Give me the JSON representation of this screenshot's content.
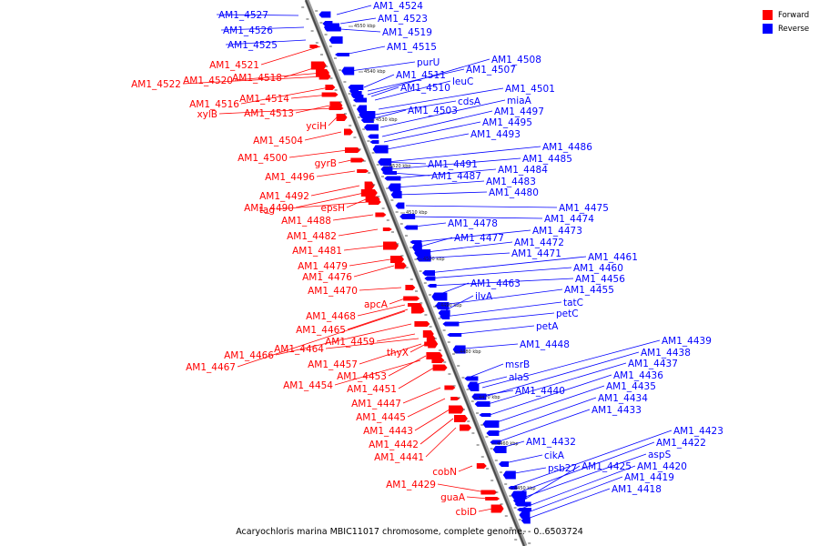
{
  "legend": {
    "forward_label": "Forward",
    "reverse_label": "Reverse",
    "forward_color": "#ff0000",
    "reverse_color": "#0000ff"
  },
  "caption": "Acaryochloris marina MBIC11017 chromosome, complete genome. - 0..6503724",
  "scale_unit": "kbp",
  "scale_ticks": [
    "4550 kbp",
    "4540 kbp",
    "4530 kbp",
    "4520 kbp",
    "4510 kbp",
    "4500 kbp",
    "4490 kbp",
    "4480 kbp",
    "4470 kbp",
    "4460 kbp",
    "4450 kbp"
  ],
  "forward_genes": [
    "AM1_4521",
    "AM1_4518",
    "AM1_4520",
    "AM1_4522",
    "AM1_4516",
    "AM1_4514",
    "xylB",
    "AM1_4513",
    "yciH",
    "AM1_4504",
    "AM1_4500",
    "gyrB",
    "AM1_4496",
    "AM1_4492",
    "AM1_4490",
    "epsH",
    "tag",
    "AM1_4488",
    "AM1_4482",
    "AM1_4481",
    "AM1_4479",
    "AM1_4476",
    "AM1_4470",
    "apcA",
    "AM1_4468",
    "AM1_4465",
    "AM1_4459",
    "AM1_4464",
    "AM1_4466",
    "thyX",
    "AM1_4467",
    "AM1_4457",
    "AM1_4453",
    "AM1_4451",
    "AM1_4454",
    "AM1_4447",
    "AM1_4445",
    "AM1_4443",
    "AM1_4442",
    "AM1_4441",
    "cobN",
    "AM1_4429",
    "guaA",
    "cbiD"
  ],
  "reverse_genes": [
    "AM1_4527",
    "AM1_4526",
    "AM1_4525",
    "AM1_4524",
    "AM1_4523",
    "AM1_4519",
    "AM1_4515",
    "purU",
    "AM1_4508",
    "AM1_4507",
    "AM1_4511",
    "leuC",
    "AM1_4510",
    "AM1_4501",
    "cdsA",
    "miaA",
    "AM1_4503",
    "AM1_4497",
    "AM1_4495",
    "AM1_4493",
    "AM1_4486",
    "AM1_4485",
    "AM1_4491",
    "AM1_4484",
    "AM1_4487",
    "AM1_4483",
    "AM1_4480",
    "AM1_4475",
    "AM1_4474",
    "AM1_4478",
    "AM1_4473",
    "AM1_4477",
    "AM1_4472",
    "AM1_4471",
    "AM1_4461",
    "AM1_4460",
    "AM1_4456",
    "AM1_4463",
    "AM1_4455",
    "ilvA",
    "tatC",
    "petC",
    "petA",
    "AM1_4448",
    "AM1_4439",
    "AM1_4438",
    "AM1_4437",
    "msrB",
    "AM1_4436",
    "alaS",
    "AM1_4435",
    "AM1_4440",
    "AM1_4434",
    "AM1_4433",
    "AM1_4423",
    "AM1_4422",
    "AM1_4432",
    "aspS",
    "cikA",
    "AM1_4425",
    "AM1_4420",
    "psb27",
    "AM1_4419",
    "AM1_4418"
  ]
}
